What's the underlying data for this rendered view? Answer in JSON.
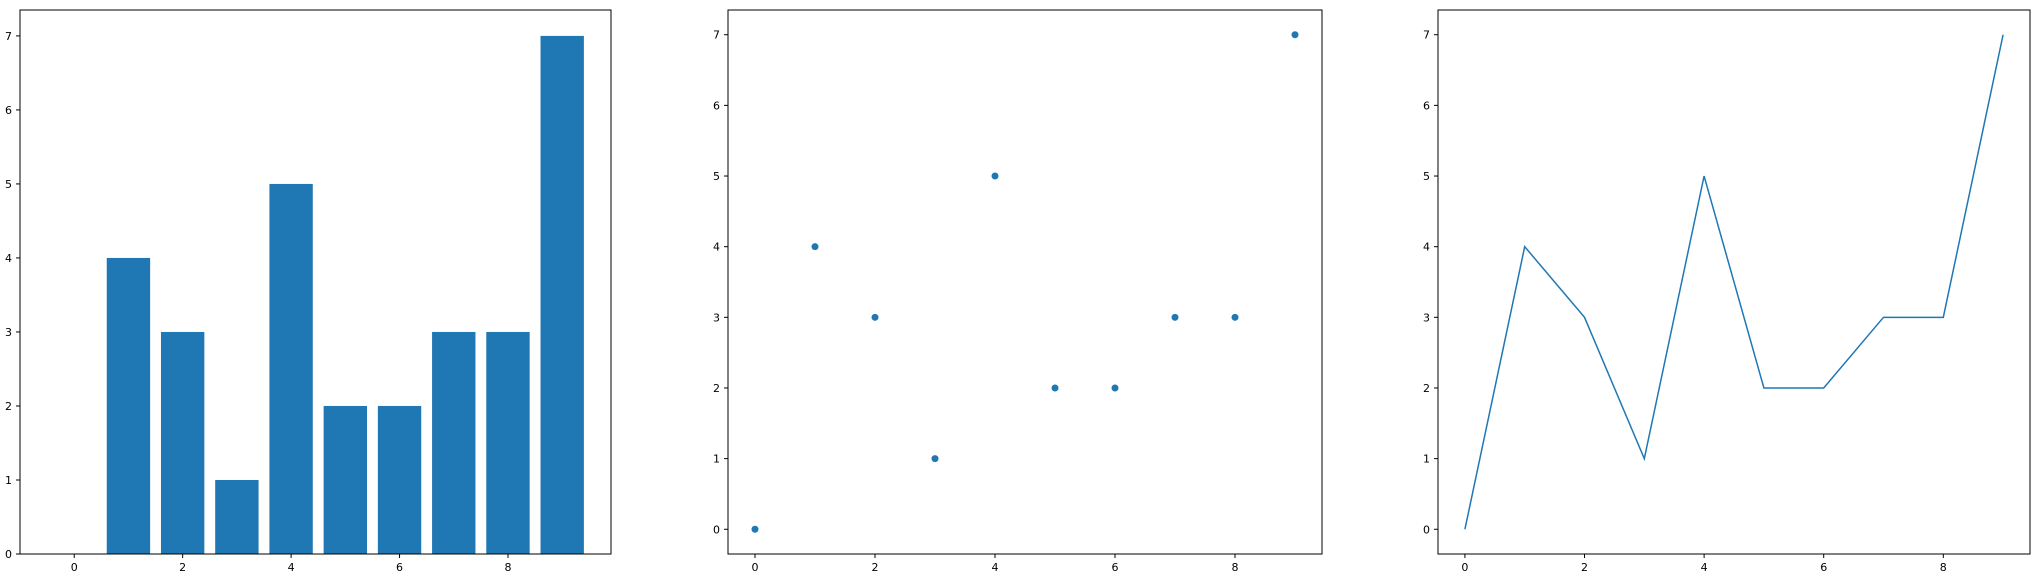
{
  "chart_data": [
    {
      "type": "bar",
      "categories": [
        0,
        1,
        2,
        3,
        4,
        5,
        6,
        7,
        8,
        9
      ],
      "values": [
        0,
        4,
        3,
        1,
        5,
        2,
        2,
        3,
        3,
        7
      ],
      "color": "#1f77b4",
      "xlim": [
        -1.0,
        9.9
      ],
      "ylim": [
        0,
        7.35
      ],
      "xticks": [
        0,
        2,
        4,
        6,
        8
      ],
      "yticks": [
        0,
        1,
        2,
        3,
        4,
        5,
        6,
        7
      ],
      "title": "",
      "xlabel": "",
      "ylabel": "",
      "grid": false
    },
    {
      "type": "scatter",
      "x": [
        0,
        1,
        2,
        3,
        4,
        5,
        6,
        7,
        8,
        9
      ],
      "y": [
        0,
        4,
        3,
        1,
        5,
        2,
        2,
        3,
        3,
        7
      ],
      "color": "#1f77b4",
      "xlim": [
        -0.45,
        9.45
      ],
      "ylim": [
        -0.35,
        7.35
      ],
      "xticks": [
        0,
        2,
        4,
        6,
        8
      ],
      "yticks": [
        0,
        1,
        2,
        3,
        4,
        5,
        6,
        7
      ],
      "title": "",
      "xlabel": "",
      "ylabel": "",
      "grid": false
    },
    {
      "type": "line",
      "x": [
        0,
        1,
        2,
        3,
        4,
        5,
        6,
        7,
        8,
        9
      ],
      "y": [
        0,
        4,
        3,
        1,
        5,
        2,
        2,
        3,
        3,
        7
      ],
      "color": "#1f77b4",
      "xlim": [
        -0.45,
        9.45
      ],
      "ylim": [
        -0.35,
        7.35
      ],
      "xticks": [
        0,
        2,
        4,
        6,
        8
      ],
      "yticks": [
        0,
        1,
        2,
        3,
        4,
        5,
        6,
        7
      ],
      "title": "",
      "xlabel": "",
      "ylabel": "",
      "grid": false
    }
  ]
}
